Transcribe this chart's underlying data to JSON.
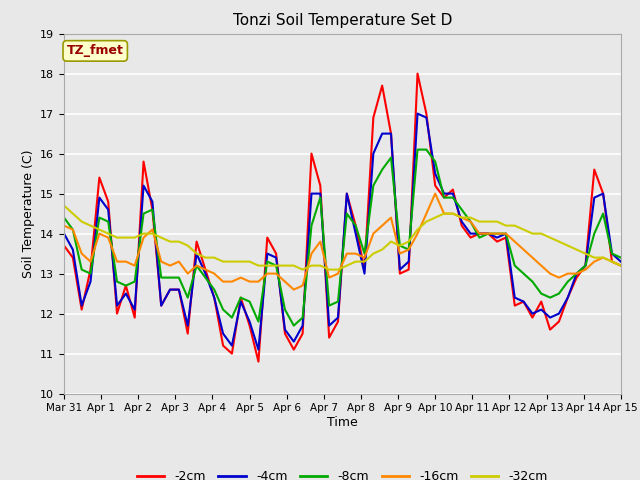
{
  "title": "Tonzi Soil Temperature Set D",
  "xlabel": "Time",
  "ylabel": "Soil Temperature (C)",
  "ylim": [
    10.0,
    19.0
  ],
  "yticks": [
    10.0,
    11.0,
    12.0,
    13.0,
    14.0,
    15.0,
    16.0,
    17.0,
    18.0,
    19.0
  ],
  "xtick_labels": [
    "Mar 31",
    "Apr 1",
    "Apr 2",
    "Apr 3",
    "Apr 4",
    "Apr 5",
    "Apr 6",
    "Apr 7",
    "Apr 8",
    "Apr 9",
    "Apr 10",
    "Apr 11",
    "Apr 12",
    "Apr 13",
    "Apr 14",
    "Apr 15"
  ],
  "legend_label": "TZ_fmet",
  "legend_box_facecolor": "#ffffcc",
  "legend_box_edgecolor": "#999900",
  "legend_text_color": "#990000",
  "line_colors": [
    "#ff0000",
    "#0000cc",
    "#00aa00",
    "#ff8800",
    "#cccc00"
  ],
  "line_labels": [
    "-2cm",
    "-4cm",
    "-8cm",
    "-16cm",
    "-32cm"
  ],
  "fig_facecolor": "#e8e8e8",
  "plot_facecolor": "#e8e8e8",
  "grid_color": "#ffffff",
  "t2cm": [
    13.7,
    13.4,
    12.1,
    13.1,
    15.4,
    14.8,
    12.0,
    12.7,
    11.9,
    15.8,
    14.6,
    12.2,
    12.6,
    12.6,
    11.5,
    13.8,
    13.1,
    12.4,
    11.2,
    11.0,
    12.4,
    11.7,
    10.8,
    13.9,
    13.5,
    11.5,
    11.1,
    11.5,
    16.0,
    15.2,
    11.4,
    11.8,
    15.0,
    14.2,
    13.1,
    16.9,
    17.7,
    16.5,
    13.0,
    13.1,
    18.0,
    17.0,
    15.2,
    14.9,
    15.1,
    14.2,
    13.9,
    14.0,
    14.0,
    13.8,
    13.9,
    12.2,
    12.3,
    11.9,
    12.3,
    11.6,
    11.8,
    12.4,
    12.9,
    13.2,
    15.6,
    15.0,
    13.3,
    13.2
  ],
  "t4cm": [
    14.0,
    13.6,
    12.2,
    12.8,
    14.9,
    14.6,
    12.2,
    12.5,
    12.1,
    15.2,
    14.8,
    12.2,
    12.6,
    12.6,
    11.7,
    13.5,
    13.0,
    12.4,
    11.5,
    11.2,
    12.3,
    11.8,
    11.1,
    13.5,
    13.4,
    11.6,
    11.3,
    11.7,
    15.0,
    15.0,
    11.7,
    11.9,
    15.0,
    14.0,
    13.0,
    16.0,
    16.5,
    16.5,
    13.1,
    13.3,
    17.0,
    16.9,
    15.5,
    15.0,
    15.0,
    14.3,
    14.0,
    14.0,
    14.0,
    13.9,
    14.0,
    12.4,
    12.3,
    12.0,
    12.1,
    11.9,
    12.0,
    12.4,
    13.0,
    13.2,
    14.9,
    15.0,
    13.5,
    13.3
  ],
  "t8cm": [
    14.4,
    14.1,
    13.1,
    13.0,
    14.4,
    14.3,
    12.8,
    12.7,
    12.8,
    14.5,
    14.6,
    12.9,
    12.9,
    12.9,
    12.4,
    13.2,
    12.9,
    12.6,
    12.1,
    11.9,
    12.4,
    12.3,
    11.8,
    13.3,
    13.2,
    12.1,
    11.7,
    11.9,
    14.2,
    14.9,
    12.2,
    12.3,
    14.5,
    14.2,
    13.5,
    15.2,
    15.6,
    15.9,
    13.7,
    13.6,
    16.1,
    16.1,
    15.8,
    14.9,
    14.9,
    14.6,
    14.3,
    13.9,
    14.0,
    14.0,
    14.0,
    13.2,
    13.0,
    12.8,
    12.5,
    12.4,
    12.5,
    12.8,
    13.0,
    13.2,
    14.0,
    14.5,
    13.5,
    13.4
  ],
  "t16cm": [
    14.2,
    14.1,
    13.5,
    13.3,
    14.0,
    13.9,
    13.3,
    13.3,
    13.2,
    13.9,
    14.1,
    13.3,
    13.2,
    13.3,
    13.0,
    13.2,
    13.1,
    13.0,
    12.8,
    12.8,
    12.9,
    12.8,
    12.8,
    13.0,
    13.0,
    12.8,
    12.6,
    12.7,
    13.5,
    13.8,
    12.9,
    13.0,
    13.5,
    13.5,
    13.4,
    14.0,
    14.2,
    14.4,
    13.5,
    13.6,
    14.0,
    14.5,
    15.0,
    14.5,
    14.5,
    14.4,
    14.3,
    14.0,
    14.0,
    14.0,
    14.0,
    13.8,
    13.6,
    13.4,
    13.2,
    13.0,
    12.9,
    13.0,
    13.0,
    13.1,
    13.3,
    13.4,
    13.3,
    13.2
  ],
  "t32cm": [
    14.7,
    14.5,
    14.3,
    14.2,
    14.1,
    14.0,
    13.9,
    13.9,
    13.9,
    14.0,
    14.0,
    13.9,
    13.8,
    13.8,
    13.7,
    13.5,
    13.4,
    13.4,
    13.3,
    13.3,
    13.3,
    13.3,
    13.2,
    13.2,
    13.2,
    13.2,
    13.2,
    13.1,
    13.2,
    13.2,
    13.1,
    13.1,
    13.2,
    13.3,
    13.3,
    13.5,
    13.6,
    13.8,
    13.7,
    13.8,
    14.1,
    14.3,
    14.4,
    14.5,
    14.5,
    14.4,
    14.4,
    14.3,
    14.3,
    14.3,
    14.2,
    14.2,
    14.1,
    14.0,
    14.0,
    13.9,
    13.8,
    13.7,
    13.6,
    13.5,
    13.4,
    13.4,
    13.3,
    13.2
  ]
}
